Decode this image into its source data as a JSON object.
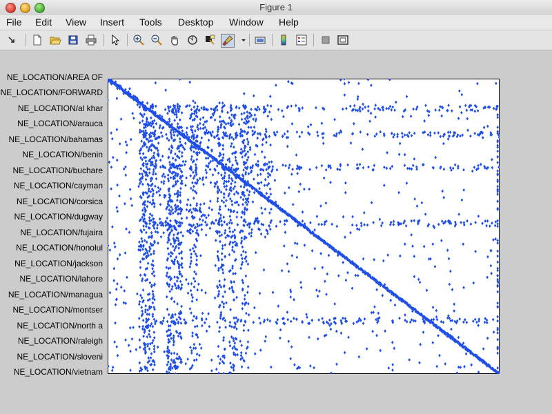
{
  "window": {
    "title": "Figure 1"
  },
  "menu": [
    "File",
    "Edit",
    "View",
    "Insert",
    "Tools",
    "Desktop",
    "Window",
    "Help"
  ],
  "toolbar": {
    "buttons": [
      "dock-icon",
      "new-figure-icon",
      "open-file-icon",
      "save-icon",
      "print-icon",
      "edit-plot-icon",
      "zoom-in-icon",
      "zoom-out-icon",
      "pan-icon",
      "rotate-3d-icon",
      "data-cursor-icon",
      "brush-icon",
      "brush-dropdown-icon",
      "link-plot-icon",
      "insert-colorbar-icon",
      "insert-legend-icon",
      "hide-plot-tools-icon",
      "show-plot-tools-icon"
    ]
  },
  "colors": {
    "marker": "#1f4fe6",
    "axes_bg": "#ffffff",
    "figure_bg": "#cccccc"
  },
  "chart_data": {
    "type": "scatter",
    "marker": "diamond",
    "y_tick_labels": [
      "NE_LOCATION/AREA OF",
      "NE_LOCATION/FORWARD",
      "NE_LOCATION/al khar",
      "NE_LOCATION/arauca",
      "NE_LOCATION/bahamas",
      "NE_LOCATION/benin",
      "NE_LOCATION/buchare",
      "NE_LOCATION/cayman",
      "NE_LOCATION/corsica",
      "NE_LOCATION/dugway",
      "NE_LOCATION/fujaira",
      "NE_LOCATION/honolul",
      "NE_LOCATION/jackson",
      "NE_LOCATION/lahore",
      "NE_LOCATION/managua",
      "NE_LOCATION/montser",
      "NE_LOCATION/north a",
      "NE_LOCATION/raleigh",
      "NE_LOCATION/sloveni",
      "NE_LOCATION/vietnam"
    ],
    "xlim": [
      0,
      1
    ],
    "ylim": [
      0,
      1
    ],
    "diagonal": [
      [
        0,
        0
      ],
      [
        1,
        1
      ]
    ],
    "dense_columns": [
      0.09,
      0.11,
      0.16,
      0.18,
      0.22,
      0.29,
      0.32,
      0.35
    ],
    "dense_rows": [
      0.1,
      0.19,
      0.3,
      0.49,
      0.82
    ],
    "grid": false,
    "legend": "none"
  }
}
